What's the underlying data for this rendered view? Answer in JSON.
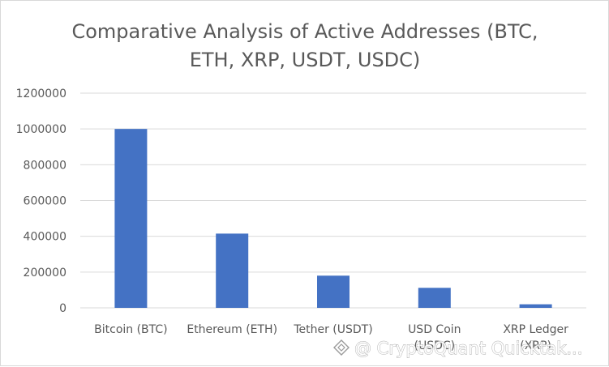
{
  "chart_data": {
    "type": "bar",
    "title_lines": [
      "Comparative Analysis of Active Addresses (BTC,",
      "ETH, XRP, USDT, USDC)"
    ],
    "categories": [
      [
        "Bitcoin (BTC)"
      ],
      [
        "Ethereum (ETH)"
      ],
      [
        "Tether (USDT)"
      ],
      [
        "USD Coin",
        "(USDC)"
      ],
      [
        "XRP Ledger",
        "(XRP)"
      ]
    ],
    "values": [
      1000000,
      415000,
      180000,
      112000,
      20000
    ],
    "y_ticks": [
      "0",
      "200000",
      "400000",
      "600000",
      "800000",
      "1000000",
      "1200000"
    ],
    "ylim": [
      0,
      1200000
    ],
    "grid": true,
    "bar_color": "#4472c4",
    "grid_color": "#d9d9d9"
  },
  "watermark": {
    "text": "@ CryptoQuant Quicktak..."
  }
}
